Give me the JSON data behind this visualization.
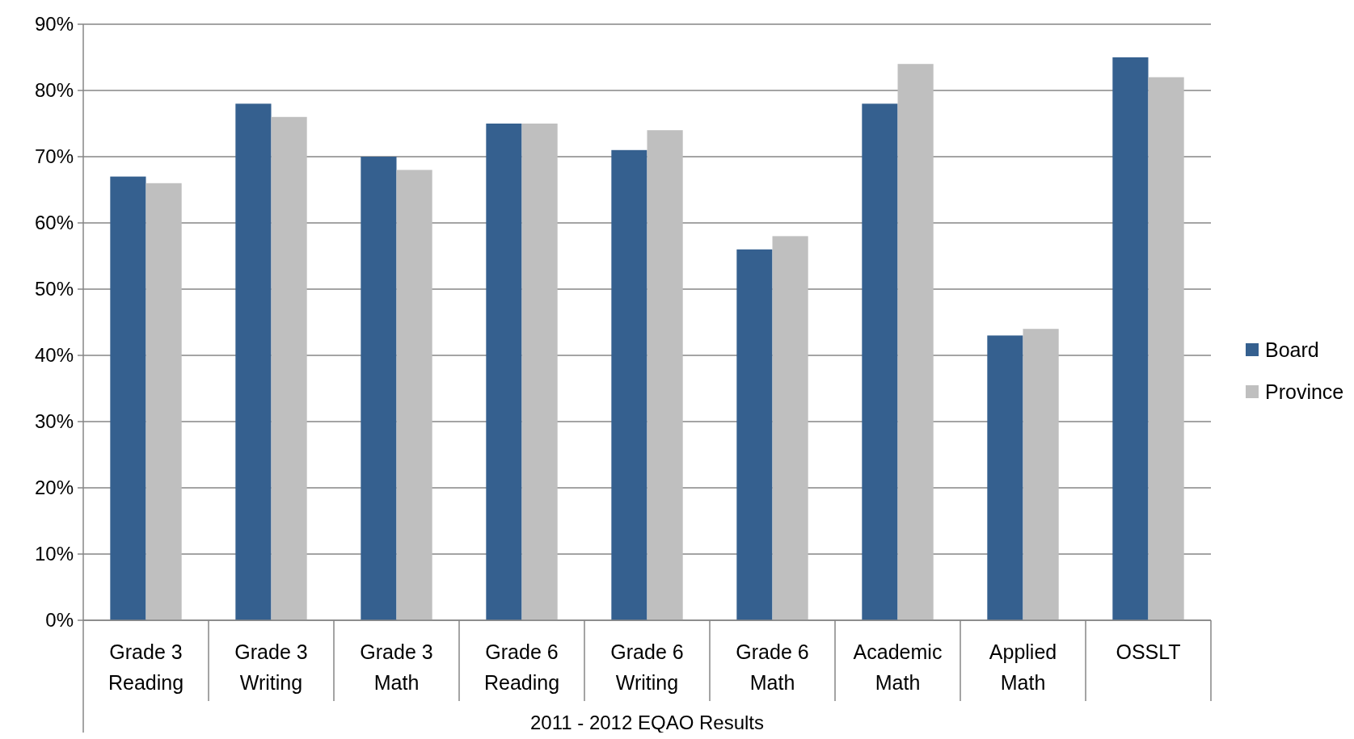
{
  "chart_data": {
    "type": "bar",
    "xlabel": "2011 - 2012 EQAO Results",
    "categories": [
      "Grade 3 Reading",
      "Grade 3 Writing",
      "Grade 3 Math",
      "Grade 6 Reading",
      "Grade 6 Writing",
      "Grade 6 Math",
      "Academic Math",
      "Applied Math",
      "OSSLT"
    ],
    "series": [
      {
        "name": "Board",
        "color": "#35608f",
        "values": [
          67,
          78,
          70,
          75,
          71,
          56,
          78,
          43,
          85
        ]
      },
      {
        "name": "Province",
        "color": "#bfbfbf",
        "values": [
          66,
          76,
          68,
          75,
          74,
          58,
          84,
          44,
          82
        ]
      }
    ],
    "ylim": [
      0,
      90
    ],
    "yticks": [
      {
        "value": 0,
        "label": "0%"
      },
      {
        "value": 10,
        "label": "10%"
      },
      {
        "value": 20,
        "label": "20%"
      },
      {
        "value": 30,
        "label": "30%"
      },
      {
        "value": 40,
        "label": "40%"
      },
      {
        "value": 50,
        "label": "50%"
      },
      {
        "value": 60,
        "label": "60%"
      },
      {
        "value": 70,
        "label": "70%"
      },
      {
        "value": 80,
        "label": "80%"
      },
      {
        "value": 90,
        "label": "90%"
      }
    ],
    "grid": "y",
    "legend": "right"
  }
}
